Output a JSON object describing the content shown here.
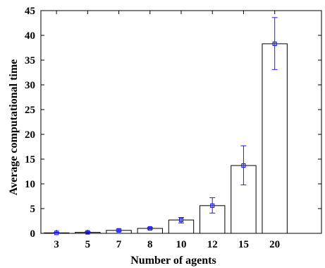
{
  "chart_data": {
    "type": "bar",
    "title": "",
    "xlabel": "Number of agents",
    "ylabel": "Average computational time",
    "categories": [
      "3",
      "5",
      "7",
      "8",
      "10",
      "12",
      "15",
      "20"
    ],
    "values": [
      0.1,
      0.2,
      0.6,
      1.0,
      2.7,
      5.6,
      13.7,
      38.3
    ],
    "error_low": [
      0.0,
      0.1,
      0.4,
      0.85,
      2.1,
      4.1,
      9.8,
      33.1
    ],
    "error_high": [
      0.2,
      0.35,
      0.85,
      1.2,
      3.2,
      7.2,
      17.7,
      43.6
    ],
    "x_slots": 9,
    "ylim": [
      0,
      45
    ],
    "yticks": [
      0,
      5,
      10,
      15,
      20,
      25,
      30,
      35,
      40,
      45
    ],
    "grid": false,
    "legend": "none",
    "colors": {
      "bar_fill": "#ffffff",
      "bar_stroke": "#000000",
      "error": "#1a1aff",
      "marker": "#1a1aff"
    }
  }
}
